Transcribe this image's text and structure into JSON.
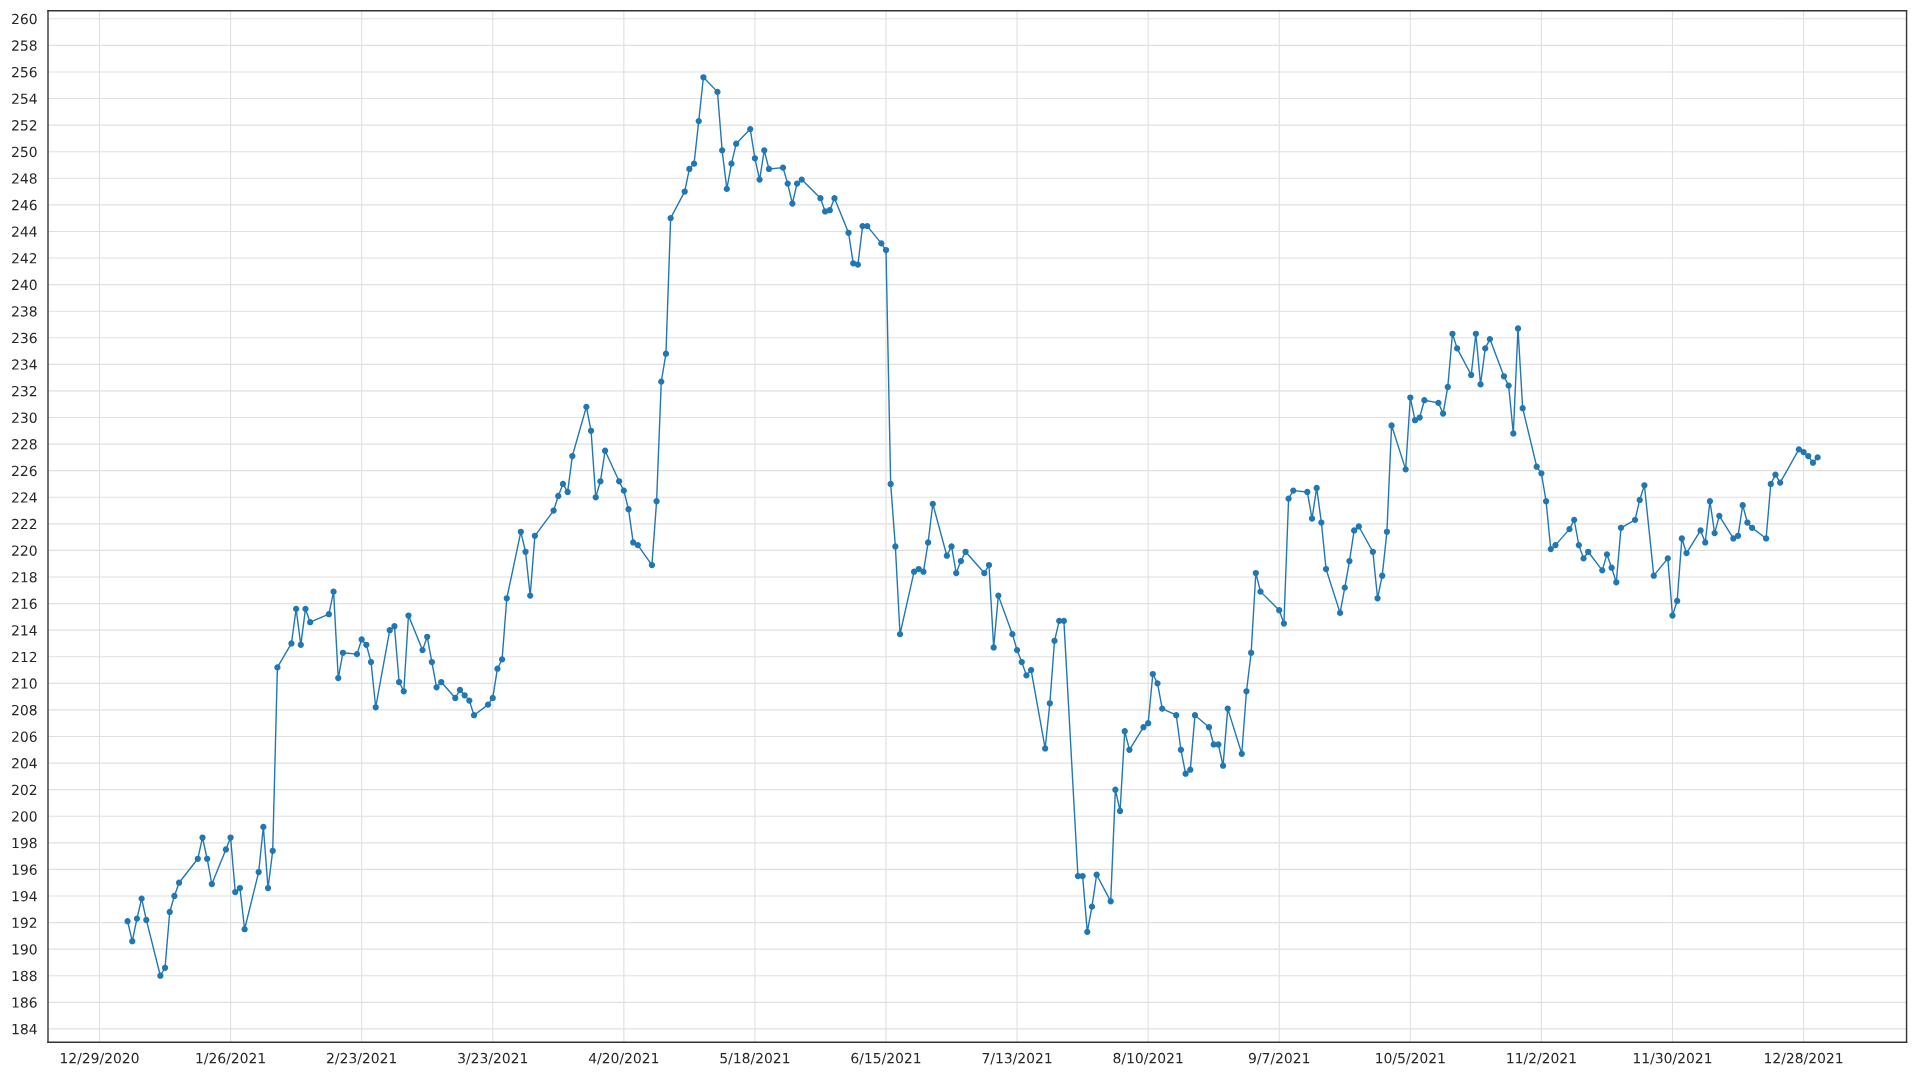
{
  "chart_data": {
    "type": "line",
    "marker": "circle",
    "line_style": "solid",
    "grid": true,
    "xlim": [
      "2020-12-18",
      "2022-01-19"
    ],
    "ylim": [
      183,
      260.6
    ],
    "xticks": [
      {
        "value": "2020-12-29",
        "label": "12/29/2020"
      },
      {
        "value": "2021-01-26",
        "label": "1/26/2021"
      },
      {
        "value": "2021-02-23",
        "label": "2/23/2021"
      },
      {
        "value": "2021-03-23",
        "label": "3/23/2021"
      },
      {
        "value": "2021-04-20",
        "label": "4/20/2021"
      },
      {
        "value": "2021-05-18",
        "label": "5/18/2021"
      },
      {
        "value": "2021-06-15",
        "label": "6/15/2021"
      },
      {
        "value": "2021-07-13",
        "label": "7/13/2021"
      },
      {
        "value": "2021-08-10",
        "label": "8/10/2021"
      },
      {
        "value": "2021-09-07",
        "label": "9/7/2021"
      },
      {
        "value": "2021-10-05",
        "label": "10/5/2021"
      },
      {
        "value": "2021-11-02",
        "label": "11/2/2021"
      },
      {
        "value": "2021-11-30",
        "label": "11/30/2021"
      },
      {
        "value": "2021-12-28",
        "label": "12/28/2021"
      }
    ],
    "yticks": [
      184,
      186,
      188,
      190,
      192,
      194,
      196,
      198,
      200,
      202,
      204,
      206,
      208,
      210,
      212,
      214,
      216,
      218,
      220,
      222,
      224,
      226,
      228,
      230,
      232,
      234,
      236,
      238,
      240,
      242,
      244,
      246,
      248,
      250,
      252,
      254,
      256,
      258,
      260
    ],
    "x": [
      "2021-01-04",
      "2021-01-05",
      "2021-01-06",
      "2021-01-07",
      "2021-01-08",
      "2021-01-11",
      "2021-01-12",
      "2021-01-13",
      "2021-01-14",
      "2021-01-15",
      "2021-01-19",
      "2021-01-20",
      "2021-01-21",
      "2021-01-22",
      "2021-01-25",
      "2021-01-26",
      "2021-01-27",
      "2021-01-28",
      "2021-01-29",
      "2021-02-01",
      "2021-02-02",
      "2021-02-03",
      "2021-02-04",
      "2021-02-05",
      "2021-02-08",
      "2021-02-09",
      "2021-02-10",
      "2021-02-11",
      "2021-02-12",
      "2021-02-16",
      "2021-02-17",
      "2021-02-18",
      "2021-02-19",
      "2021-02-22",
      "2021-02-23",
      "2021-02-24",
      "2021-02-25",
      "2021-02-26",
      "2021-03-01",
      "2021-03-02",
      "2021-03-03",
      "2021-03-04",
      "2021-03-05",
      "2021-03-08",
      "2021-03-09",
      "2021-03-10",
      "2021-03-11",
      "2021-03-12",
      "2021-03-15",
      "2021-03-16",
      "2021-03-17",
      "2021-03-18",
      "2021-03-19",
      "2021-03-22",
      "2021-03-23",
      "2021-03-24",
      "2021-03-25",
      "2021-03-26",
      "2021-03-29",
      "2021-03-30",
      "2021-03-31",
      "2021-04-01",
      "2021-04-05",
      "2021-04-06",
      "2021-04-07",
      "2021-04-08",
      "2021-04-09",
      "2021-04-12",
      "2021-04-13",
      "2021-04-14",
      "2021-04-15",
      "2021-04-16",
      "2021-04-19",
      "2021-04-20",
      "2021-04-21",
      "2021-04-22",
      "2021-04-23",
      "2021-04-26",
      "2021-04-27",
      "2021-04-28",
      "2021-04-29",
      "2021-04-30",
      "2021-05-03",
      "2021-05-04",
      "2021-05-05",
      "2021-05-06",
      "2021-05-07",
      "2021-05-10",
      "2021-05-11",
      "2021-05-12",
      "2021-05-13",
      "2021-05-14",
      "2021-05-17",
      "2021-05-18",
      "2021-05-19",
      "2021-05-20",
      "2021-05-21",
      "2021-05-24",
      "2021-05-25",
      "2021-05-26",
      "2021-05-27",
      "2021-05-28",
      "2021-06-01",
      "2021-06-02",
      "2021-06-03",
      "2021-06-04",
      "2021-06-07",
      "2021-06-08",
      "2021-06-09",
      "2021-06-10",
      "2021-06-11",
      "2021-06-14",
      "2021-06-15",
      "2021-06-16",
      "2021-06-17",
      "2021-06-18",
      "2021-06-21",
      "2021-06-22",
      "2021-06-23",
      "2021-06-24",
      "2021-06-25",
      "2021-06-28",
      "2021-06-29",
      "2021-06-30",
      "2021-07-01",
      "2021-07-02",
      "2021-07-06",
      "2021-07-07",
      "2021-07-08",
      "2021-07-09",
      "2021-07-12",
      "2021-07-13",
      "2021-07-14",
      "2021-07-15",
      "2021-07-16",
      "2021-07-19",
      "2021-07-20",
      "2021-07-21",
      "2021-07-22",
      "2021-07-23",
      "2021-07-26",
      "2021-07-27",
      "2021-07-28",
      "2021-07-29",
      "2021-07-30",
      "2021-08-02",
      "2021-08-03",
      "2021-08-04",
      "2021-08-05",
      "2021-08-06",
      "2021-08-09",
      "2021-08-10",
      "2021-08-11",
      "2021-08-12",
      "2021-08-13",
      "2021-08-16",
      "2021-08-17",
      "2021-08-18",
      "2021-08-19",
      "2021-08-20",
      "2021-08-23",
      "2021-08-24",
      "2021-08-25",
      "2021-08-26",
      "2021-08-27",
      "2021-08-30",
      "2021-08-31",
      "2021-09-01",
      "2021-09-02",
      "2021-09-03",
      "2021-09-07",
      "2021-09-08",
      "2021-09-09",
      "2021-09-10",
      "2021-09-13",
      "2021-09-14",
      "2021-09-15",
      "2021-09-16",
      "2021-09-17",
      "2021-09-20",
      "2021-09-21",
      "2021-09-22",
      "2021-09-23",
      "2021-09-24",
      "2021-09-27",
      "2021-09-28",
      "2021-09-29",
      "2021-09-30",
      "2021-10-01",
      "2021-10-04",
      "2021-10-05",
      "2021-10-06",
      "2021-10-07",
      "2021-10-08",
      "2021-10-11",
      "2021-10-12",
      "2021-10-13",
      "2021-10-14",
      "2021-10-15",
      "2021-10-18",
      "2021-10-19",
      "2021-10-20",
      "2021-10-21",
      "2021-10-22",
      "2021-10-25",
      "2021-10-26",
      "2021-10-27",
      "2021-10-28",
      "2021-10-29",
      "2021-11-01",
      "2021-11-02",
      "2021-11-03",
      "2021-11-04",
      "2021-11-05",
      "2021-11-08",
      "2021-11-09",
      "2021-11-10",
      "2021-11-11",
      "2021-11-12",
      "2021-11-15",
      "2021-11-16",
      "2021-11-17",
      "2021-11-18",
      "2021-11-19",
      "2021-11-22",
      "2021-11-23",
      "2021-11-24",
      "2021-11-26",
      "2021-11-29",
      "2021-11-30",
      "2021-12-01",
      "2021-12-02",
      "2021-12-03",
      "2021-12-06",
      "2021-12-07",
      "2021-12-08",
      "2021-12-09",
      "2021-12-10",
      "2021-12-13",
      "2021-12-14",
      "2021-12-15",
      "2021-12-16",
      "2021-12-17",
      "2021-12-20",
      "2021-12-21",
      "2021-12-22",
      "2021-12-23",
      "2021-12-27",
      "2021-12-28",
      "2021-12-29",
      "2021-12-30",
      "2021-12-31"
    ],
    "series": [
      {
        "color": "#1f77b4",
        "values": [
          192.1,
          190.6,
          192.3,
          193.8,
          192.2,
          188.0,
          188.6,
          192.8,
          194.0,
          195.0,
          196.8,
          198.4,
          196.8,
          194.9,
          197.5,
          198.4,
          194.3,
          194.6,
          191.5,
          195.8,
          199.2,
          194.6,
          197.4,
          211.2,
          213.0,
          215.6,
          212.9,
          215.6,
          214.6,
          215.2,
          216.9,
          210.4,
          212.3,
          212.2,
          213.3,
          212.9,
          211.6,
          208.2,
          214.0,
          214.3,
          210.1,
          209.4,
          215.1,
          212.5,
          213.5,
          211.6,
          209.7,
          210.1,
          208.9,
          209.5,
          209.1,
          208.7,
          207.6,
          208.4,
          208.9,
          211.1,
          211.8,
          216.4,
          221.4,
          219.9,
          216.6,
          221.1,
          223.0,
          224.1,
          225.0,
          224.4,
          227.1,
          230.8,
          229.0,
          224.0,
          225.2,
          227.5,
          225.2,
          224.5,
          223.1,
          220.6,
          220.4,
          218.9,
          223.7,
          232.7,
          234.8,
          245.0,
          247.0,
          248.7,
          249.1,
          252.3,
          255.6,
          254.5,
          250.1,
          247.2,
          249.1,
          250.6,
          251.7,
          249.5,
          247.9,
          250.1,
          248.7,
          248.8,
          247.6,
          246.1,
          247.6,
          247.9,
          246.5,
          245.5,
          245.6,
          246.5,
          243.9,
          241.6,
          241.5,
          244.4,
          244.4,
          243.1,
          242.6,
          225.0,
          220.3,
          213.7,
          218.4,
          218.6,
          218.4,
          220.6,
          223.5,
          219.6,
          220.3,
          218.3,
          219.2,
          219.9,
          218.3,
          218.9,
          212.7,
          216.6,
          213.7,
          212.5,
          211.6,
          210.6,
          211.0,
          205.1,
          208.5,
          213.2,
          214.7,
          214.7,
          195.5,
          195.5,
          191.3,
          193.2,
          195.6,
          193.6,
          202.0,
          200.4,
          206.4,
          205.0,
          206.7,
          207.0,
          210.7,
          210.0,
          208.1,
          207.6,
          205.0,
          203.2,
          203.5,
          207.6,
          206.7,
          205.4,
          205.4,
          203.8,
          208.1,
          204.7,
          209.4,
          212.3,
          218.3,
          216.9,
          215.5,
          214.5,
          223.9,
          224.5,
          224.4,
          222.4,
          224.7,
          222.1,
          218.6,
          215.3,
          217.2,
          219.2,
          221.5,
          221.8,
          219.9,
          216.4,
          218.1,
          221.4,
          229.4,
          226.1,
          231.5,
          229.8,
          230.0,
          231.3,
          231.1,
          230.3,
          232.3,
          236.3,
          235.2,
          233.2,
          236.3,
          232.5,
          235.2,
          235.9,
          233.1,
          232.4,
          228.8,
          236.7,
          230.7,
          226.3,
          225.8,
          223.7,
          220.1,
          220.4,
          221.6,
          222.3,
          220.4,
          219.4,
          219.9,
          218.5,
          219.7,
          218.7,
          217.6,
          221.7,
          222.3,
          223.8,
          224.9,
          218.1,
          219.4,
          215.1,
          216.2,
          220.9,
          219.8,
          221.5,
          220.6,
          223.7,
          221.3,
          222.6,
          220.9,
          221.1,
          223.4,
          222.1,
          221.7,
          220.9,
          225.0,
          225.7,
          225.1,
          227.6,
          227.4,
          227.1,
          226.6,
          227.0
        ]
      }
    ]
  }
}
